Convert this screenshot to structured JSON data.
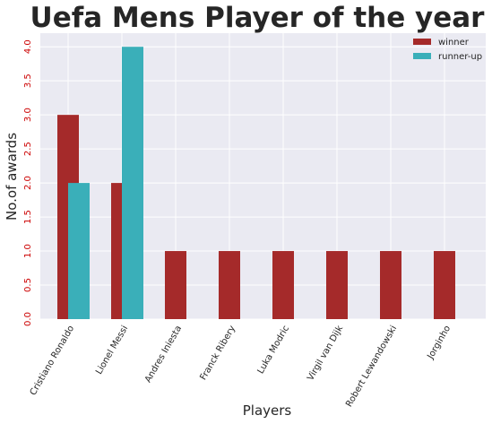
{
  "chart_data": {
    "type": "bar",
    "title": "Uefa Mens Player of the year",
    "xlabel": "Players",
    "ylabel": "No.of awards",
    "categories": [
      "Cristiano Ronaldo",
      "Lionel Messi",
      "Andres Iniesta",
      "Franck Ribery",
      "Luka Modric",
      "Virgil van Dijk",
      "Robert Lewandowski",
      "Jorginho"
    ],
    "series": [
      {
        "name": "winner",
        "values": [
          3,
          2,
          1,
          1,
          1,
          1,
          1,
          1
        ],
        "color": "#a52a2a"
      },
      {
        "name": "runner-up",
        "values": [
          2,
          4,
          0,
          0,
          0,
          0,
          0,
          0
        ],
        "color": "#3aafb9"
      }
    ],
    "yticks": [
      "0.0",
      "0.5",
      "1.0",
      "1.5",
      "2.0",
      "2.5",
      "3.0",
      "3.5",
      "4.0"
    ],
    "ylim": [
      0,
      4.2
    ],
    "grid": true,
    "legend": "top-right",
    "colors": {
      "background": "#eaeaf2",
      "grid": "#ffffff",
      "ytick": "#cc0000"
    }
  }
}
